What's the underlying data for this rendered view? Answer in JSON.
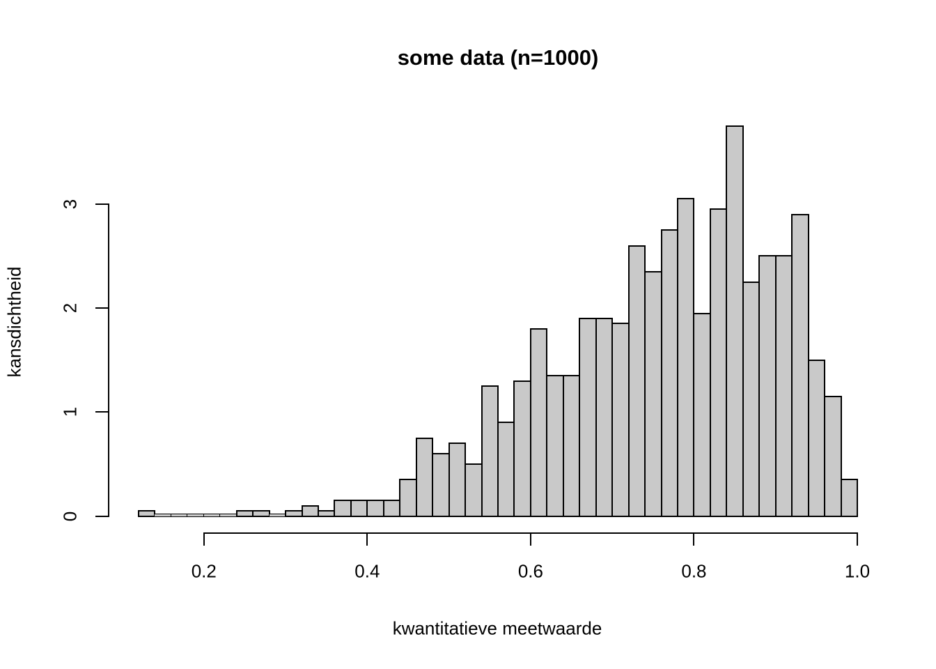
{
  "chart_data": {
    "type": "bar",
    "chart_kind": "histogram",
    "title": "some data (n=1000)",
    "xlabel": "kwantitatieve meetwaarde",
    "ylabel": "kansdichtheid",
    "n": 1000,
    "bin_start": 0.12,
    "bin_width": 0.02,
    "densities": [
      0.05,
      0,
      0,
      0,
      0,
      0,
      0.05,
      0.05,
      0,
      0.05,
      0.1,
      0.05,
      0.15,
      0.15,
      0.15,
      0.15,
      0.35,
      0.75,
      0.6,
      0.7,
      0.5,
      1.25,
      0.9,
      1.3,
      1.8,
      1.35,
      1.35,
      1.9,
      1.9,
      1.85,
      2.6,
      2.35,
      2.75,
      3.05,
      1.95,
      2.95,
      3.75,
      2.25,
      2.5,
      2.5,
      2.9,
      1.5,
      1.15,
      0.35
    ],
    "counts": [
      1,
      0,
      0,
      0,
      0,
      0,
      1,
      1,
      0,
      1,
      2,
      1,
      3,
      3,
      3,
      3,
      7,
      15,
      12,
      14,
      10,
      25,
      18,
      26,
      36,
      27,
      27,
      38,
      38,
      37,
      52,
      47,
      55,
      61,
      39,
      59,
      75,
      45,
      50,
      50,
      58,
      30,
      23,
      7
    ],
    "x_ticks": [
      {
        "value": 0.2,
        "label": "0.2"
      },
      {
        "value": 0.4,
        "label": "0.4"
      },
      {
        "value": 0.6,
        "label": "0.6"
      },
      {
        "value": 0.8,
        "label": "0.8"
      },
      {
        "value": 1.0,
        "label": "1.0"
      }
    ],
    "y_ticks": [
      {
        "value": 0,
        "label": "0"
      },
      {
        "value": 1,
        "label": "1"
      },
      {
        "value": 2,
        "label": "2"
      },
      {
        "value": 3,
        "label": "3"
      }
    ],
    "xlim": [
      0.12,
      1.0
    ],
    "ylim": [
      0,
      3.75
    ],
    "grid": false,
    "legend": "none",
    "colors": {
      "bar_fill": "#c9c9c9",
      "bar_stroke": "#000000",
      "axis": "#000000",
      "background": "#ffffff",
      "text": "#000000"
    }
  }
}
